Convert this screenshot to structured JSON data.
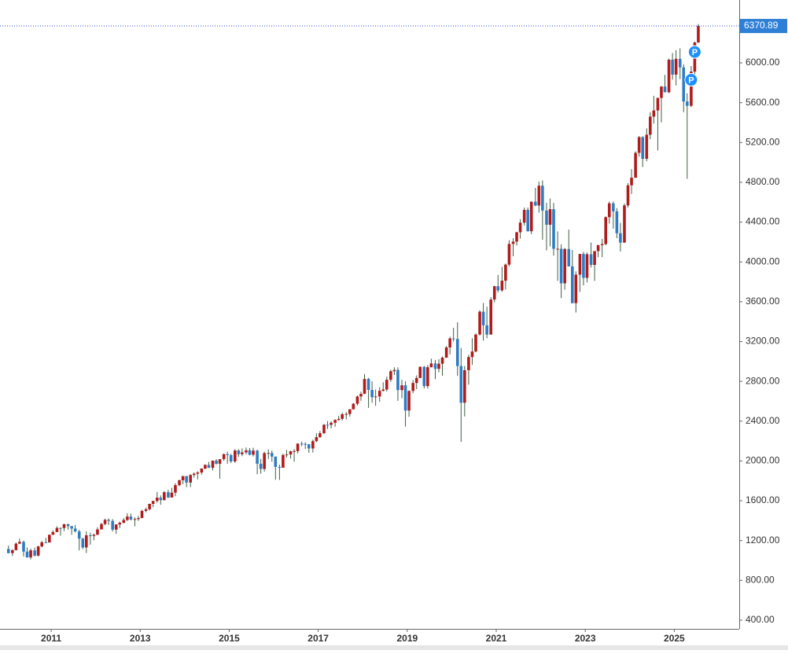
{
  "chart_data": {
    "type": "candlestick",
    "x": [
      2010.04,
      2010.13,
      2010.21,
      2010.29,
      2010.38,
      2010.46,
      2010.54,
      2010.63,
      2010.71,
      2010.79,
      2010.88,
      2010.96,
      2011.04,
      2011.13,
      2011.21,
      2011.29,
      2011.38,
      2011.46,
      2011.54,
      2011.63,
      2011.71,
      2011.79,
      2011.88,
      2011.96,
      2012.04,
      2012.13,
      2012.21,
      2012.29,
      2012.38,
      2012.46,
      2012.54,
      2012.63,
      2012.71,
      2012.79,
      2012.88,
      2012.96,
      2013.04,
      2013.13,
      2013.21,
      2013.29,
      2013.38,
      2013.46,
      2013.54,
      2013.63,
      2013.71,
      2013.79,
      2013.88,
      2013.96,
      2014.04,
      2014.13,
      2014.21,
      2014.29,
      2014.38,
      2014.46,
      2014.54,
      2014.63,
      2014.71,
      2014.79,
      2014.88,
      2014.96,
      2015.04,
      2015.13,
      2015.21,
      2015.29,
      2015.38,
      2015.46,
      2015.54,
      2015.63,
      2015.71,
      2015.79,
      2015.88,
      2015.96,
      2016.04,
      2016.13,
      2016.21,
      2016.29,
      2016.38,
      2016.46,
      2016.54,
      2016.63,
      2016.71,
      2016.79,
      2016.88,
      2016.96,
      2017.04,
      2017.13,
      2017.21,
      2017.29,
      2017.38,
      2017.46,
      2017.54,
      2017.63,
      2017.71,
      2017.79,
      2017.88,
      2017.96,
      2018.04,
      2018.13,
      2018.21,
      2018.29,
      2018.38,
      2018.46,
      2018.54,
      2018.63,
      2018.71,
      2018.79,
      2018.88,
      2018.96,
      2019.04,
      2019.13,
      2019.21,
      2019.29,
      2019.38,
      2019.46,
      2019.54,
      2019.63,
      2019.71,
      2019.79,
      2019.88,
      2019.96,
      2020.04,
      2020.13,
      2020.21,
      2020.29,
      2020.38,
      2020.46,
      2020.54,
      2020.63,
      2020.71,
      2020.79,
      2020.88,
      2020.96,
      2021.04,
      2021.13,
      2021.21,
      2021.29,
      2021.38,
      2021.46,
      2021.54,
      2021.63,
      2021.71,
      2021.79,
      2021.88,
      2021.96,
      2022.04,
      2022.13,
      2022.21,
      2022.29,
      2022.38,
      2022.46,
      2022.54,
      2022.63,
      2022.71,
      2022.79,
      2022.88,
      2022.96,
      2023.04,
      2023.13,
      2023.21,
      2023.29,
      2023.38,
      2023.46,
      2023.54,
      2023.63,
      2023.71,
      2023.79,
      2023.88,
      2023.96,
      2024.04,
      2024.13,
      2024.21,
      2024.29,
      2024.38,
      2024.46,
      2024.54,
      2024.63,
      2024.71,
      2024.79,
      2024.88,
      2024.96,
      2025.04,
      2025.13,
      2025.21,
      2025.29,
      2025.38,
      2025.46,
      2025.54
    ],
    "ohlc": [
      [
        1116,
        1150,
        1071,
        1074
      ],
      [
        1074,
        1112,
        1045,
        1104
      ],
      [
        1104,
        1180,
        1101,
        1169
      ],
      [
        1169,
        1220,
        1165,
        1187
      ],
      [
        1187,
        1200,
        1041,
        1089
      ],
      [
        1089,
        1131,
        1029,
        1031
      ],
      [
        1031,
        1120,
        1011,
        1102
      ],
      [
        1102,
        1130,
        1040,
        1049
      ],
      [
        1049,
        1149,
        1040,
        1141
      ],
      [
        1141,
        1196,
        1132,
        1183
      ],
      [
        1183,
        1228,
        1173,
        1181
      ],
      [
        1181,
        1262,
        1180,
        1258
      ],
      [
        1258,
        1302,
        1257,
        1286
      ],
      [
        1286,
        1344,
        1284,
        1327
      ],
      [
        1327,
        1332,
        1249,
        1326
      ],
      [
        1326,
        1370,
        1295,
        1364
      ],
      [
        1364,
        1371,
        1311,
        1345
      ],
      [
        1345,
        1346,
        1258,
        1321
      ],
      [
        1321,
        1357,
        1282,
        1292
      ],
      [
        1292,
        1308,
        1101,
        1219
      ],
      [
        1219,
        1230,
        1114,
        1131
      ],
      [
        1131,
        1293,
        1075,
        1253
      ],
      [
        1253,
        1278,
        1159,
        1247
      ],
      [
        1247,
        1270,
        1203,
        1258
      ],
      [
        1258,
        1334,
        1258,
        1312
      ],
      [
        1312,
        1378,
        1312,
        1366
      ],
      [
        1366,
        1420,
        1354,
        1408
      ],
      [
        1408,
        1423,
        1358,
        1398
      ],
      [
        1398,
        1416,
        1291,
        1310
      ],
      [
        1310,
        1364,
        1267,
        1362
      ],
      [
        1362,
        1392,
        1326,
        1379
      ],
      [
        1379,
        1427,
        1372,
        1407
      ],
      [
        1407,
        1475,
        1397,
        1441
      ],
      [
        1441,
        1471,
        1403,
        1412
      ],
      [
        1412,
        1434,
        1343,
        1416
      ],
      [
        1416,
        1448,
        1398,
        1426
      ],
      [
        1426,
        1510,
        1426,
        1498
      ],
      [
        1498,
        1531,
        1485,
        1515
      ],
      [
        1515,
        1570,
        1502,
        1569
      ],
      [
        1569,
        1600,
        1536,
        1598
      ],
      [
        1598,
        1687,
        1581,
        1631
      ],
      [
        1631,
        1654,
        1560,
        1606
      ],
      [
        1606,
        1698,
        1604,
        1686
      ],
      [
        1686,
        1710,
        1627,
        1633
      ],
      [
        1633,
        1730,
        1633,
        1682
      ],
      [
        1682,
        1776,
        1646,
        1757
      ],
      [
        1757,
        1813,
        1747,
        1806
      ],
      [
        1806,
        1849,
        1767,
        1848
      ],
      [
        1848,
        1850,
        1737,
        1783
      ],
      [
        1783,
        1867,
        1738,
        1859
      ],
      [
        1859,
        1884,
        1834,
        1872
      ],
      [
        1872,
        1897,
        1815,
        1884
      ],
      [
        1884,
        1925,
        1863,
        1924
      ],
      [
        1924,
        1968,
        1915,
        1960
      ],
      [
        1960,
        1991,
        1930,
        1931
      ],
      [
        1931,
        2005,
        1905,
        2003
      ],
      [
        2003,
        2019,
        1964,
        1972
      ],
      [
        1972,
        2019,
        1821,
        2018
      ],
      [
        2018,
        2076,
        2001,
        2068
      ],
      [
        2068,
        2094,
        1973,
        2059
      ],
      [
        2059,
        2072,
        1981,
        1995
      ],
      [
        1995,
        2120,
        1980,
        2105
      ],
      [
        2105,
        2117,
        2040,
        2068
      ],
      [
        2068,
        2126,
        2048,
        2086
      ],
      [
        2086,
        2135,
        2067,
        2107
      ],
      [
        2107,
        2130,
        2056,
        2063
      ],
      [
        2063,
        2133,
        2045,
        2104
      ],
      [
        2104,
        2113,
        1867,
        1972
      ],
      [
        1972,
        2021,
        1872,
        1920
      ],
      [
        1920,
        2094,
        1894,
        2079
      ],
      [
        2079,
        2117,
        2020,
        2080
      ],
      [
        2080,
        2105,
        1993,
        2044
      ],
      [
        2044,
        2044,
        1812,
        1940
      ],
      [
        1940,
        1963,
        1810,
        1932
      ],
      [
        1932,
        2073,
        1932,
        2060
      ],
      [
        2060,
        2111,
        2034,
        2065
      ],
      [
        2065,
        2103,
        2025,
        2097
      ],
      [
        2097,
        2121,
        1992,
        2099
      ],
      [
        2099,
        2178,
        2074,
        2174
      ],
      [
        2174,
        2194,
        2148,
        2171
      ],
      [
        2171,
        2188,
        2120,
        2168
      ],
      [
        2168,
        2169,
        2083,
        2126
      ],
      [
        2126,
        2214,
        2084,
        2199
      ],
      [
        2199,
        2278,
        2188,
        2239
      ],
      [
        2239,
        2301,
        2233,
        2279
      ],
      [
        2279,
        2371,
        2271,
        2364
      ],
      [
        2364,
        2401,
        2322,
        2363
      ],
      [
        2363,
        2399,
        2328,
        2384
      ],
      [
        2384,
        2419,
        2344,
        2412
      ],
      [
        2412,
        2454,
        2405,
        2423
      ],
      [
        2423,
        2484,
        2407,
        2470
      ],
      [
        2470,
        2491,
        2418,
        2472
      ],
      [
        2472,
        2520,
        2446,
        2519
      ],
      [
        2519,
        2582,
        2519,
        2575
      ],
      [
        2575,
        2657,
        2557,
        2648
      ],
      [
        2648,
        2695,
        2605,
        2674
      ],
      [
        2674,
        2873,
        2674,
        2824
      ],
      [
        2824,
        2835,
        2533,
        2714
      ],
      [
        2714,
        2801,
        2585,
        2641
      ],
      [
        2641,
        2718,
        2553,
        2648
      ],
      [
        2648,
        2742,
        2594,
        2705
      ],
      [
        2705,
        2791,
        2698,
        2718
      ],
      [
        2718,
        2848,
        2699,
        2816
      ],
      [
        2816,
        2917,
        2796,
        2902
      ],
      [
        2902,
        2941,
        2864,
        2914
      ],
      [
        2914,
        2940,
        2604,
        2712
      ],
      [
        2712,
        2815,
        2631,
        2760
      ],
      [
        2760,
        2800,
        2346,
        2507
      ],
      [
        2507,
        2708,
        2444,
        2704
      ],
      [
        2704,
        2813,
        2681,
        2784
      ],
      [
        2784,
        2860,
        2722,
        2834
      ],
      [
        2834,
        2950,
        2832,
        2946
      ],
      [
        2946,
        2955,
        2729,
        2752
      ],
      [
        2752,
        2964,
        2728,
        2942
      ],
      [
        2942,
        3028,
        2940,
        2980
      ],
      [
        2980,
        3014,
        2822,
        2926
      ],
      [
        2926,
        3022,
        2892,
        2977
      ],
      [
        2977,
        3050,
        2855,
        3038
      ],
      [
        3038,
        3155,
        3036,
        3141
      ],
      [
        3141,
        3248,
        3071,
        3231
      ],
      [
        3231,
        3338,
        3200,
        3226
      ],
      [
        3226,
        3394,
        2855,
        2954
      ],
      [
        2954,
        3136,
        2192,
        2585
      ],
      [
        2585,
        2954,
        2447,
        2912
      ],
      [
        2912,
        3068,
        2767,
        3044
      ],
      [
        3044,
        3233,
        2966,
        3100
      ],
      [
        3100,
        3280,
        3092,
        3271
      ],
      [
        3271,
        3515,
        3260,
        3500
      ],
      [
        3500,
        3588,
        3209,
        3363
      ],
      [
        3363,
        3550,
        3234,
        3270
      ],
      [
        3270,
        3646,
        3270,
        3622
      ],
      [
        3622,
        3760,
        3595,
        3756
      ],
      [
        3756,
        3870,
        3695,
        3714
      ],
      [
        3714,
        3950,
        3700,
        3811
      ],
      [
        3811,
        3984,
        3723,
        3973
      ],
      [
        3973,
        4218,
        3955,
        4181
      ],
      [
        4181,
        4238,
        4057,
        4204
      ],
      [
        4204,
        4303,
        4165,
        4298
      ],
      [
        4298,
        4430,
        4234,
        4395
      ],
      [
        4395,
        4546,
        4367,
        4523
      ],
      [
        4523,
        4546,
        4305,
        4308
      ],
      [
        4308,
        4608,
        4279,
        4605
      ],
      [
        4605,
        4744,
        4560,
        4567
      ],
      [
        4567,
        4808,
        4495,
        4766
      ],
      [
        4766,
        4818,
        4222,
        4516
      ],
      [
        4516,
        4595,
        4115,
        4374
      ],
      [
        4374,
        4637,
        4157,
        4530
      ],
      [
        4530,
        4593,
        4063,
        4132
      ],
      [
        4132,
        4307,
        3810,
        4132
      ],
      [
        4132,
        4177,
        3637,
        3785
      ],
      [
        3785,
        4140,
        3721,
        4130
      ],
      [
        4130,
        4325,
        3955,
        3955
      ],
      [
        3955,
        4120,
        3584,
        3586
      ],
      [
        3586,
        3905,
        3492,
        3872
      ],
      [
        3872,
        4080,
        3699,
        4080
      ],
      [
        4080,
        4101,
        3764,
        3840
      ],
      [
        3840,
        4095,
        3794,
        4077
      ],
      [
        4077,
        4195,
        3944,
        3970
      ],
      [
        3970,
        4110,
        3809,
        4109
      ],
      [
        4109,
        4170,
        4048,
        4169
      ],
      [
        4169,
        4231,
        4048,
        4180
      ],
      [
        4180,
        4458,
        4167,
        4450
      ],
      [
        4450,
        4607,
        4385,
        4589
      ],
      [
        4589,
        4607,
        4335,
        4508
      ],
      [
        4508,
        4541,
        4238,
        4288
      ],
      [
        4288,
        4393,
        4104,
        4194
      ],
      [
        4194,
        4587,
        4194,
        4568
      ],
      [
        4568,
        4793,
        4546,
        4770
      ],
      [
        4770,
        4932,
        4683,
        4846
      ],
      [
        4846,
        5111,
        4845,
        5096
      ],
      [
        5096,
        5265,
        5057,
        5254
      ],
      [
        5254,
        5264,
        4954,
        5036
      ],
      [
        5036,
        5342,
        5012,
        5278
      ],
      [
        5278,
        5505,
        5234,
        5460
      ],
      [
        5460,
        5669,
        5390,
        5522
      ],
      [
        5522,
        5651,
        5120,
        5648
      ],
      [
        5648,
        5768,
        5402,
        5762
      ],
      [
        5762,
        5879,
        5705,
        5705
      ],
      [
        5705,
        6044,
        5696,
        6032
      ],
      [
        6032,
        6099,
        5832,
        5882
      ],
      [
        5882,
        6128,
        5773,
        6041
      ],
      [
        6041,
        6147,
        5837,
        5955
      ],
      [
        5955,
        5986,
        5505,
        5612
      ],
      [
        5612,
        5695,
        4835,
        5569
      ],
      [
        5569,
        5968,
        5556,
        5912
      ],
      [
        5912,
        6215,
        5862,
        6205
      ],
      [
        6205,
        6390,
        6200,
        6370.89
      ]
    ],
    "up_color": "#b01c1c",
    "down_color": "#2f7cc4",
    "wick_color": "#3f5f45",
    "xlim": [
      2009.85,
      2026.46
    ],
    "xticks": [
      2011,
      2013,
      2015,
      2017,
      2019,
      2021,
      2023,
      2025
    ],
    "ylim": [
      313,
      6632
    ],
    "yticks": [
      {
        "value": 400,
        "label": "400.00"
      },
      {
        "value": 800,
        "label": "800.00"
      },
      {
        "value": 1200,
        "label": "1200.00"
      },
      {
        "value": 1600,
        "label": "1600.00"
      },
      {
        "value": 2000,
        "label": "2000.00"
      },
      {
        "value": 2400,
        "label": "2400.00"
      },
      {
        "value": 2800,
        "label": "2800.00"
      },
      {
        "value": 3200,
        "label": "3200.00"
      },
      {
        "value": 3600,
        "label": "3600.00"
      },
      {
        "value": 4000,
        "label": "4000.00"
      },
      {
        "value": 4400,
        "label": "4400.00"
      },
      {
        "value": 4800,
        "label": "4800.00"
      },
      {
        "value": 5200,
        "label": "5200.00"
      },
      {
        "value": 5600,
        "label": "5600.00"
      },
      {
        "value": 6000,
        "label": "6000.00"
      }
    ],
    "events": [
      {
        "label": "P"
      },
      {
        "label": "P"
      }
    ]
  }
}
